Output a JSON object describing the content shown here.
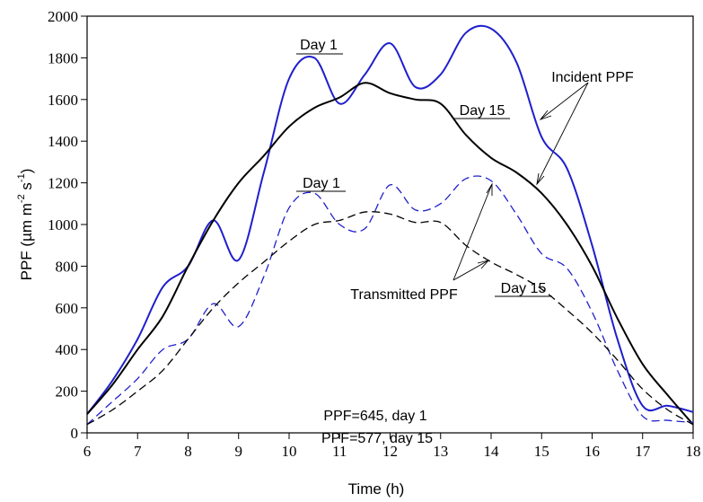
{
  "chart_data": {
    "type": "line",
    "xlabel": "Time (h)",
    "ylabel_parts": [
      "PPF (µm m",
      "-2",
      " s",
      "-1",
      ")"
    ],
    "x": [
      6,
      6.5,
      7,
      7.5,
      8,
      8.5,
      9,
      9.5,
      10,
      10.5,
      11,
      11.5,
      12,
      12.5,
      13,
      13.5,
      14,
      14.5,
      15,
      15.5,
      16,
      16.5,
      17,
      17.5,
      18
    ],
    "series": [
      {
        "name": "Incident PPF, Day 1",
        "color": "#1f1fcc",
        "dash": false,
        "values": [
          90,
          250,
          450,
          700,
          800,
          1020,
          830,
          1250,
          1700,
          1800,
          1580,
          1720,
          1870,
          1660,
          1720,
          1920,
          1940,
          1780,
          1420,
          1270,
          900,
          450,
          130,
          130,
          100
        ]
      },
      {
        "name": "Incident PPF, Day 15",
        "color": "#000000",
        "dash": false,
        "values": [
          90,
          230,
          400,
          560,
          800,
          1020,
          1200,
          1330,
          1470,
          1560,
          1610,
          1680,
          1630,
          1600,
          1580,
          1430,
          1320,
          1250,
          1150,
          1000,
          800,
          550,
          330,
          180,
          40
        ]
      },
      {
        "name": "Transmitted PPF, Day 1",
        "color": "#1f1fcc",
        "dash": true,
        "values": [
          40,
          150,
          260,
          400,
          450,
          620,
          510,
          750,
          1080,
          1150,
          1000,
          980,
          1190,
          1070,
          1100,
          1220,
          1210,
          1050,
          860,
          790,
          580,
          300,
          80,
          60,
          50
        ]
      },
      {
        "name": "Transmitted PPF, Day 15",
        "color": "#000000",
        "dash": true,
        "values": [
          40,
          110,
          200,
          300,
          450,
          600,
          720,
          820,
          920,
          1000,
          1020,
          1060,
          1050,
          1010,
          1010,
          900,
          820,
          760,
          690,
          590,
          480,
          350,
          210,
          110,
          40
        ]
      }
    ],
    "xlim": [
      6,
      18
    ],
    "xticks": [
      6,
      7,
      8,
      9,
      10,
      11,
      12,
      13,
      14,
      15,
      16,
      17,
      18
    ],
    "ylim": [
      0,
      2000
    ],
    "yticks": [
      0,
      200,
      400,
      600,
      800,
      1000,
      1200,
      1400,
      1600,
      1800,
      2000
    ],
    "annotations": [
      "Day 1",
      "Day 15",
      "Day 1",
      "Day 15",
      "Incident PPF",
      "Transmitted PPF",
      "PPF=645, day 1",
      "PPF=577, day 15"
    ]
  }
}
